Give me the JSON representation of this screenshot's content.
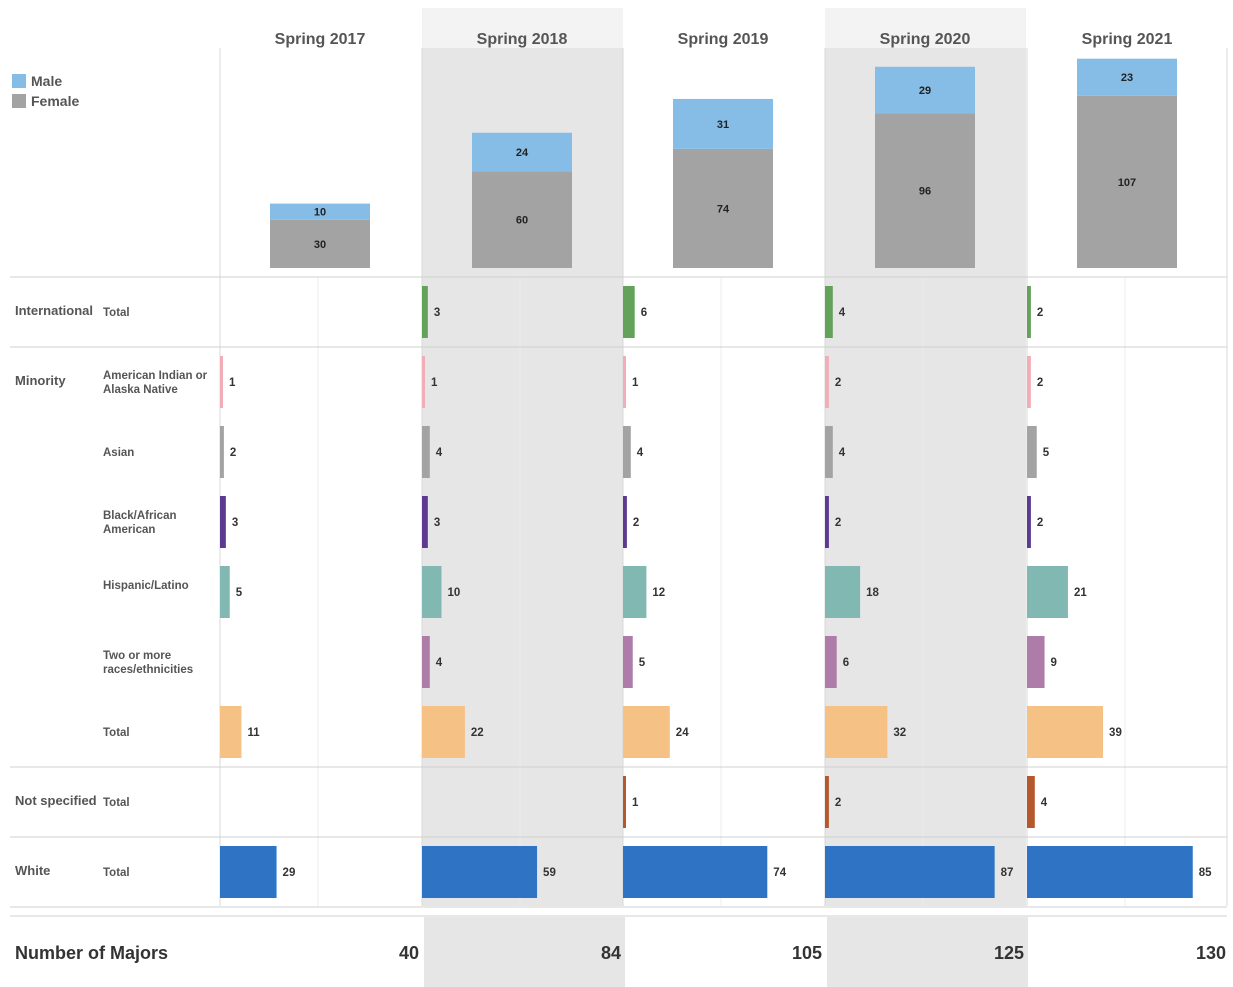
{
  "legend": [
    {
      "label": "Male",
      "color": "#85bde6"
    },
    {
      "label": "Female",
      "color": "#a3a3a3"
    }
  ],
  "footer_label": "Number of Majors",
  "chart_data": [
    {
      "type": "bar",
      "stacked": true,
      "categories": [
        "Spring 2017",
        "Spring 2018",
        "Spring 2019",
        "Spring 2020",
        "Spring 2021"
      ],
      "series": [
        {
          "name": "Female",
          "color": "#a3a3a3",
          "values": [
            30,
            60,
            74,
            96,
            107
          ]
        },
        {
          "name": "Male",
          "color": "#85bde6",
          "values": [
            10,
            24,
            31,
            29,
            23
          ]
        }
      ],
      "ylim": [
        0,
        140
      ],
      "legend_position": "top-left"
    },
    {
      "type": "bar",
      "orientation": "horizontal",
      "categories": [
        "Spring 2017",
        "Spring 2018",
        "Spring 2019",
        "Spring 2020",
        "Spring 2021"
      ],
      "xlim": [
        0,
        90
      ],
      "groups": [
        {
          "label": "International",
          "rows": [
            {
              "label": "Total",
              "color": "#64a15a",
              "values": [
                0,
                3,
                6,
                4,
                2
              ]
            }
          ]
        },
        {
          "label": "Minority",
          "rows": [
            {
              "label": "American Indian or Alaska Native",
              "color": "#f2aeb8",
              "values": [
                1,
                1,
                1,
                2,
                2
              ]
            },
            {
              "label": "Asian",
              "color": "#a3a3a3",
              "values": [
                2,
                4,
                4,
                4,
                5
              ]
            },
            {
              "label": "Black/African American",
              "color": "#5c3a8f",
              "values": [
                3,
                3,
                2,
                2,
                2
              ]
            },
            {
              "label": "Hispanic/Latino",
              "color": "#82b8b2",
              "values": [
                5,
                10,
                12,
                18,
                21
              ]
            },
            {
              "label": "Two or more races/ethnicities",
              "color": "#ad7ca8",
              "values": [
                0,
                4,
                5,
                6,
                9
              ]
            },
            {
              "label": "Total",
              "color": "#f5c185",
              "values": [
                11,
                22,
                24,
                32,
                39
              ]
            }
          ]
        },
        {
          "label": "Not specified",
          "rows": [
            {
              "label": "Total",
              "color": "#b5582e",
              "values": [
                0,
                0,
                1,
                2,
                4
              ]
            }
          ]
        },
        {
          "label": "White",
          "rows": [
            {
              "label": "Total",
              "color": "#2f74c4",
              "values": [
                29,
                59,
                74,
                87,
                85
              ]
            }
          ]
        }
      ],
      "totals": [
        40,
        84,
        105,
        125,
        130
      ]
    }
  ]
}
